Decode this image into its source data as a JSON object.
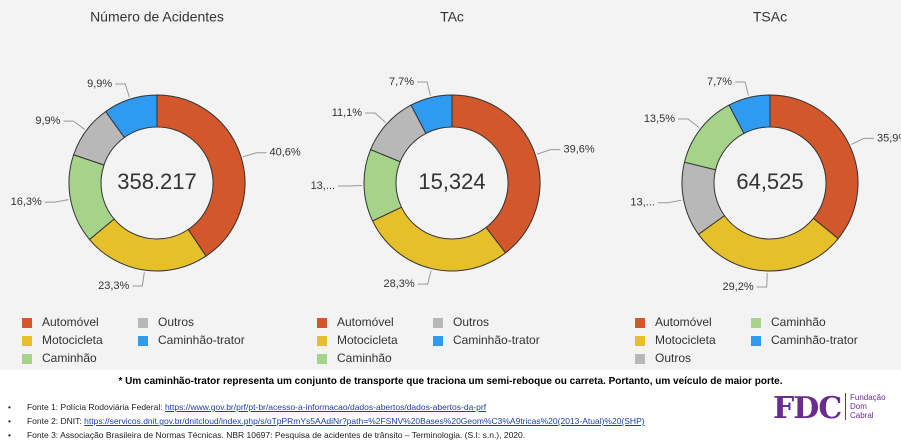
{
  "chart_data": [
    {
      "type": "pie",
      "title": "Número de Acidentes",
      "center_label": "358.217",
      "categories": [
        "Automóvel",
        "Motocicleta",
        "Caminhão",
        "Outros",
        "Caminhão-trator"
      ],
      "values": [
        40.6,
        23.3,
        16.3,
        9.9,
        9.9
      ],
      "value_labels": [
        "40,6%",
        "23,3%",
        "16,3%",
        "9,9%",
        "9,9%"
      ],
      "colors": [
        "#d2572b",
        "#e6c02a",
        "#a5d38a",
        "#b8b8b8",
        "#2e9bf0"
      ]
    },
    {
      "type": "pie",
      "title": "TAc",
      "center_label": "15,324",
      "categories": [
        "Automóvel",
        "Motocicleta",
        "Caminhão",
        "Outros",
        "Caminhão-trator"
      ],
      "values": [
        39.6,
        28.3,
        13.3,
        11.1,
        7.7
      ],
      "value_labels": [
        "39,6%",
        "28,3%",
        "13,...",
        "11,1%",
        "7,7%"
      ],
      "colors": [
        "#d2572b",
        "#e6c02a",
        "#a5d38a",
        "#b8b8b8",
        "#2e9bf0"
      ]
    },
    {
      "type": "pie",
      "title": "TSAc",
      "center_label": "64,525",
      "categories": [
        "Automóvel",
        "Motocicleta",
        "Outros",
        "Caminhão",
        "Caminhão-trator"
      ],
      "values": [
        35.9,
        29.2,
        13.7,
        13.5,
        7.7
      ],
      "value_labels": [
        "35,9%",
        "29,2%",
        "13,...",
        "13,5%",
        "7,7%"
      ],
      "colors": [
        "#d2572b",
        "#e6c02a",
        "#b8b8b8",
        "#a5d38a",
        "#2e9bf0"
      ]
    }
  ],
  "note": "* Um caminhão-trator representa um conjunto de transporte que traciona um semi-reboque ou carreta. Portanto, um veículo de maior porte.",
  "sources": [
    {
      "text": "Fonte 1: Polícia Rodoviária Federal: ",
      "link": "https://www.gov.br/prf/pt-br/acesso-a-informacao/dados-abertos/dados-abertos-da-prf"
    },
    {
      "text": "Fonte 2: DNIT: ",
      "link": "https://servicos.dnit.gov.br/dnitcloud/index.php/s/oTpPRmYs5AAdiNr?path=%2FSNV%20Bases%20Geom%C3%A9tricas%20(2013-Atual)%20(SHP)"
    },
    {
      "text": "Fonte 3: Associação Brasileira de Normas Técnicas. NBR 10697: Pesquisa de acidentes de trânsito – Terminologia. (S.I: s.n.), 2020."
    }
  ],
  "logo": {
    "mark": "FDC",
    "name": [
      "Fundação",
      "Dom",
      "Cabral"
    ]
  }
}
